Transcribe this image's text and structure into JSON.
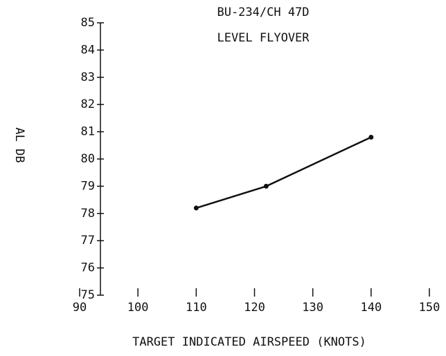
{
  "chart_data": {
    "type": "line",
    "title": [
      "BU-234/CH 47D",
      "LEVEL FLYOVER"
    ],
    "y_label": "AL DB",
    "x_label": "TARGET INDICATED AIRSPEED (KNOTS)",
    "x": [
      110,
      122,
      140
    ],
    "series": [
      {
        "name": "AL DB",
        "color": "#111111",
        "values": [
          78.2,
          79.0,
          80.8
        ]
      }
    ],
    "xlim": [
      90,
      150
    ],
    "xticks": [
      90,
      100,
      110,
      120,
      130,
      140,
      150
    ],
    "ylim": [
      75,
      85
    ],
    "yticks": [
      75,
      76,
      77,
      78,
      79,
      80,
      81,
      82,
      83,
      84,
      85
    ],
    "grid": false
  }
}
